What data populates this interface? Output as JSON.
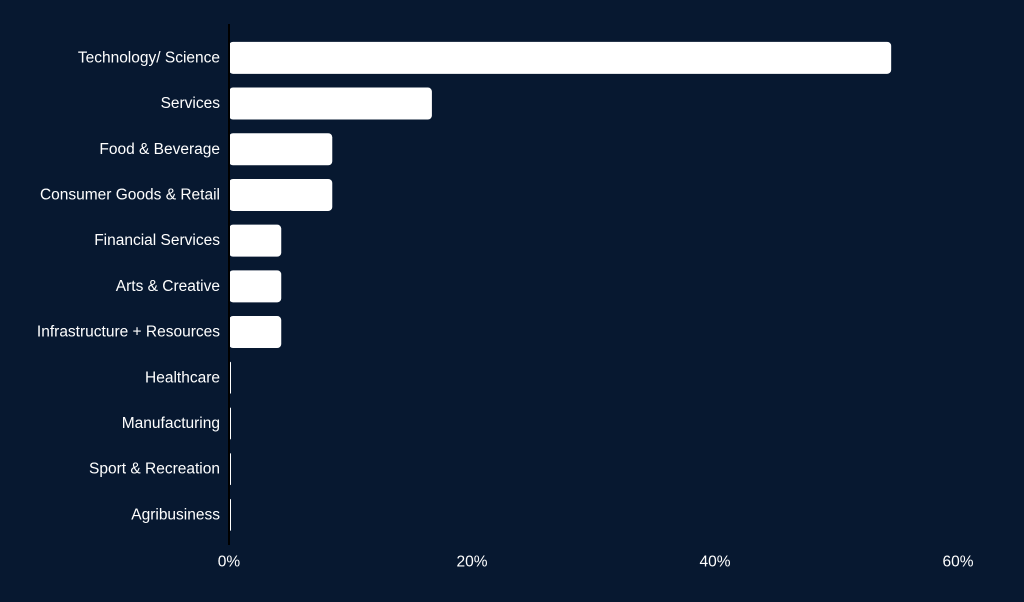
{
  "colors": {
    "background": "#071830",
    "bar": "#ffffff",
    "text": "#ffffff",
    "axis": "#000000"
  },
  "chart_data": {
    "type": "bar",
    "orientation": "horizontal",
    "categories": [
      "Technology/ Science",
      "Services",
      "Food & Beverage",
      "Consumer Goods & Retail",
      "Financial Services",
      "Arts & Creative",
      "Infrastructure + Resources",
      "Healthcare",
      "Manufacturing",
      "Sport & Recreation",
      "Agribusiness"
    ],
    "values": [
      54.5,
      16.7,
      8.5,
      8.5,
      4.3,
      4.3,
      4.3,
      0,
      0,
      0,
      0
    ],
    "unit": "%",
    "xlim": [
      0,
      60
    ],
    "ticks": [
      0,
      20,
      40,
      60
    ],
    "tick_labels": [
      "0%",
      "20%",
      "40%",
      "60%"
    ],
    "grid": false,
    "legend": "none"
  }
}
